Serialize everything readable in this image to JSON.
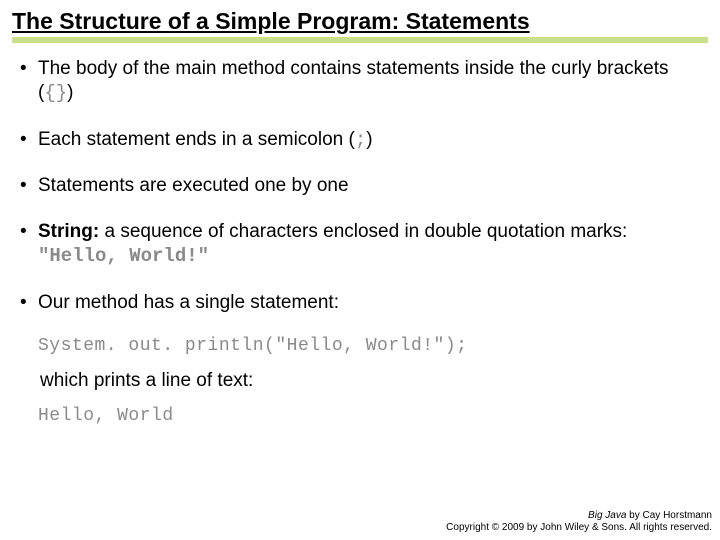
{
  "title": "The Structure of a Simple Program: Statements",
  "divider_color": "#c9df8a",
  "bullets": {
    "b1_pre": "The body of the main method contains statements inside the curly brackets (",
    "b1_code": "{}",
    "b1_post": ")",
    "b2_pre": "Each statement ends in a semicolon (",
    "b2_code": ";",
    "b2_post": ")",
    "b3": "Statements are executed one by one",
    "b4_bold": "String:",
    "b4_mid": " a sequence of characters enclosed in double quotation marks: ",
    "b4_code": "\"Hello, World!\"",
    "b5": "Our method has a single statement:"
  },
  "code_statement": "System. out. println(\"Hello, World!\");",
  "sub_text": "which prints a line of text:",
  "output": "Hello, World",
  "footer": {
    "book_title": "Big Java",
    "author": " by Cay Horstmann",
    "copyright": "Copyright © 2009 by John Wiley & Sons.  All rights reserved."
  }
}
